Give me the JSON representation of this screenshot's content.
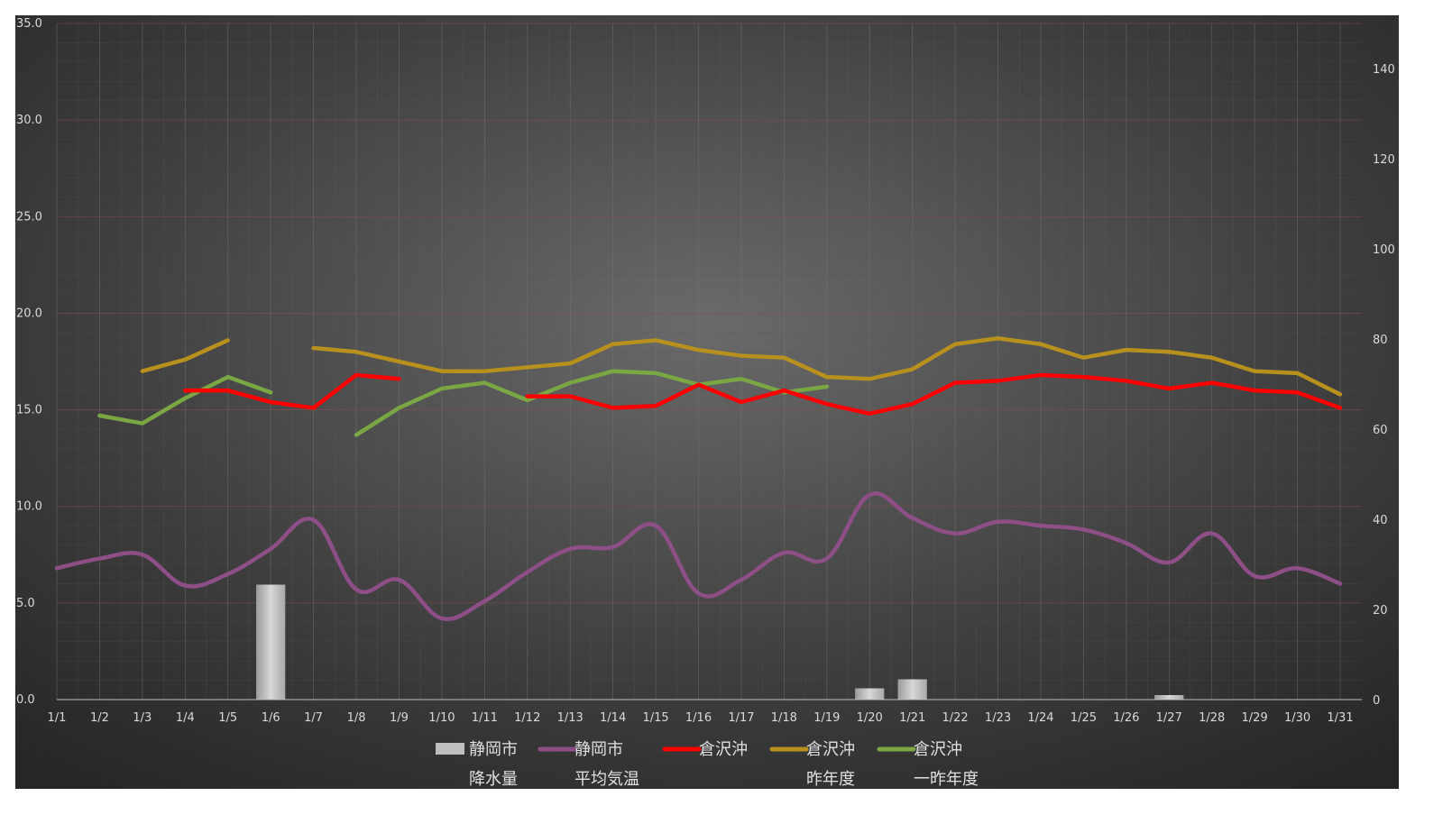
{
  "chart_data": {
    "type": "line",
    "categories": [
      "1/1",
      "1/2",
      "1/3",
      "1/4",
      "1/5",
      "1/6",
      "1/7",
      "1/8",
      "1/9",
      "1/10",
      "1/11",
      "1/12",
      "1/13",
      "1/14",
      "1/15",
      "1/16",
      "1/17",
      "1/18",
      "1/19",
      "1/20",
      "1/21",
      "1/22",
      "1/23",
      "1/24",
      "1/25",
      "1/26",
      "1/27",
      "1/28",
      "1/29",
      "1/30",
      "1/31"
    ],
    "y_left": {
      "min": 0,
      "max": 35,
      "ticks": [
        "0.0",
        "5.0",
        "10.0",
        "15.0",
        "20.0",
        "25.0",
        "30.0",
        "35.0"
      ]
    },
    "y_right": {
      "min": 0,
      "max": 150,
      "ticks": [
        "0",
        "20",
        "40",
        "60",
        "80",
        "100",
        "120",
        "140"
      ]
    },
    "grid": true,
    "legend_position": "bottom",
    "series": [
      {
        "name": "静岡市 降水量",
        "legend_lines": [
          "静岡市",
          "降水量"
        ],
        "kind": "bar",
        "axis": "right",
        "color": "#bfbfbf",
        "values": [
          null,
          null,
          null,
          null,
          null,
          25.5,
          null,
          null,
          null,
          null,
          null,
          null,
          null,
          null,
          null,
          null,
          null,
          null,
          null,
          2.5,
          4.5,
          null,
          null,
          null,
          null,
          null,
          1,
          null,
          null,
          null,
          null
        ]
      },
      {
        "name": "静岡市 平均気温",
        "legend_lines": [
          "静岡市",
          "平均気温"
        ],
        "kind": "line",
        "smooth": true,
        "axis": "left",
        "color": "#8e4f87",
        "values": [
          6.8,
          7.3,
          7.5,
          5.9,
          6.5,
          7.8,
          9.3,
          5.7,
          6.2,
          4.2,
          5.1,
          6.6,
          7.8,
          7.9,
          9.0,
          5.5,
          6.2,
          7.6,
          7.3,
          10.6,
          9.4,
          8.6,
          9.2,
          9.0,
          8.8,
          8.1,
          7.1,
          8.6,
          6.4,
          6.8,
          6.0
        ]
      },
      {
        "name": "倉沢沖",
        "legend_lines": [
          "倉沢沖",
          ""
        ],
        "kind": "line",
        "axis": "left",
        "color": "#ff0000",
        "values": [
          null,
          null,
          null,
          16.0,
          16.0,
          15.4,
          15.1,
          16.8,
          16.6,
          null,
          null,
          15.7,
          15.7,
          15.1,
          15.2,
          16.3,
          15.4,
          16.0,
          15.3,
          14.8,
          15.3,
          16.4,
          16.5,
          16.8,
          16.7,
          16.5,
          16.1,
          16.4,
          16.0,
          15.9,
          15.1
        ]
      },
      {
        "name": "倉沢沖 昨年度",
        "legend_lines": [
          "倉沢沖",
          "昨年度"
        ],
        "kind": "line",
        "axis": "left",
        "color": "#b8901e",
        "values": [
          null,
          null,
          17.0,
          17.6,
          18.6,
          null,
          18.2,
          18.0,
          17.5,
          17.0,
          17.0,
          17.2,
          17.4,
          18.4,
          18.6,
          18.1,
          17.8,
          17.7,
          16.7,
          16.6,
          17.1,
          18.4,
          18.7,
          18.4,
          17.7,
          18.1,
          18.0,
          17.7,
          17.0,
          16.9,
          15.8
        ]
      },
      {
        "name": "倉沢沖 一昨年度",
        "legend_lines": [
          "倉沢沖",
          "一昨年度"
        ],
        "kind": "line",
        "axis": "left",
        "color": "#7aa744",
        "values": [
          null,
          14.7,
          14.3,
          15.6,
          16.7,
          15.9,
          null,
          13.7,
          15.1,
          16.1,
          16.4,
          15.5,
          16.4,
          17.0,
          16.9,
          16.3,
          16.6,
          15.9,
          16.2,
          null,
          null,
          null,
          null,
          null,
          null,
          null,
          null,
          null,
          null,
          null,
          null
        ]
      }
    ]
  }
}
